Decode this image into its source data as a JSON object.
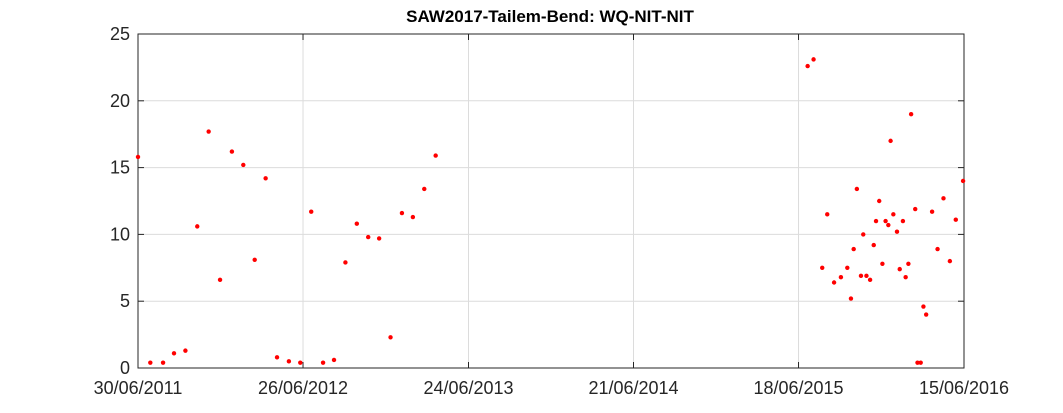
{
  "chart_data": {
    "type": "scatter",
    "title": "SAW2017-Tailem-Bend: WQ-NIT-NIT",
    "xlabel": "",
    "ylabel": "",
    "x_axis_type": "date",
    "xlim": [
      "2011-06-30",
      "2016-06-15"
    ],
    "ylim": [
      0,
      25
    ],
    "yticks": [
      0,
      5,
      10,
      15,
      20,
      25
    ],
    "xticks": [
      "2011-06-30",
      "2012-06-26",
      "2013-06-24",
      "2014-06-21",
      "2015-06-18",
      "2016-06-15"
    ],
    "xtick_labels": [
      "30/06/2011",
      "26/06/2012",
      "24/06/2013",
      "21/06/2014",
      "18/06/2015",
      "15/06/2016"
    ],
    "grid": true,
    "marker_color": "#ff0000",
    "series": [
      {
        "points": [
          [
            "2011-06-30",
            15.8
          ],
          [
            "2011-07-27",
            0.4
          ],
          [
            "2011-08-24",
            0.4
          ],
          [
            "2011-09-17",
            1.1
          ],
          [
            "2011-10-12",
            1.3
          ],
          [
            "2011-11-07",
            10.6
          ],
          [
            "2011-12-02",
            17.7
          ],
          [
            "2011-12-27",
            6.6
          ],
          [
            "2012-01-22",
            16.2
          ],
          [
            "2012-02-16",
            15.2
          ],
          [
            "2012-03-12",
            8.1
          ],
          [
            "2012-04-05",
            14.2
          ],
          [
            "2012-04-30",
            0.8
          ],
          [
            "2012-05-26",
            0.5
          ],
          [
            "2012-06-20",
            0.4
          ],
          [
            "2012-07-14",
            11.7
          ],
          [
            "2012-08-09",
            0.4
          ],
          [
            "2012-09-02",
            0.6
          ],
          [
            "2012-09-27",
            7.9
          ],
          [
            "2012-10-22",
            10.8
          ],
          [
            "2012-11-16",
            9.8
          ],
          [
            "2012-12-10",
            9.7
          ],
          [
            "2013-01-04",
            2.3
          ],
          [
            "2013-01-29",
            11.6
          ],
          [
            "2013-02-22",
            11.3
          ],
          [
            "2013-03-19",
            13.4
          ],
          [
            "2013-04-13",
            15.9
          ],
          [
            "2015-07-08",
            22.6
          ],
          [
            "2015-07-21",
            23.1
          ],
          [
            "2015-08-09",
            7.5
          ],
          [
            "2015-08-20",
            11.5
          ],
          [
            "2015-09-04",
            6.4
          ],
          [
            "2015-09-19",
            6.8
          ],
          [
            "2015-10-03",
            7.5
          ],
          [
            "2015-10-11",
            5.2
          ],
          [
            "2015-10-17",
            8.9
          ],
          [
            "2015-10-24",
            13.4
          ],
          [
            "2015-11-02",
            6.9
          ],
          [
            "2015-11-07",
            10.0
          ],
          [
            "2015-11-14",
            6.9
          ],
          [
            "2015-11-22",
            6.6
          ],
          [
            "2015-11-30",
            9.2
          ],
          [
            "2015-12-05",
            11.0
          ],
          [
            "2015-12-12",
            12.5
          ],
          [
            "2015-12-19",
            7.8
          ],
          [
            "2015-12-26",
            11.0
          ],
          [
            "2016-01-01",
            10.7
          ],
          [
            "2016-01-06",
            17.0
          ],
          [
            "2016-01-12",
            11.5
          ],
          [
            "2016-01-20",
            10.2
          ],
          [
            "2016-01-26",
            7.4
          ],
          [
            "2016-02-02",
            11.0
          ],
          [
            "2016-02-08",
            6.8
          ],
          [
            "2016-02-14",
            7.8
          ],
          [
            "2016-02-20",
            19.0
          ],
          [
            "2016-02-29",
            11.9
          ],
          [
            "2016-03-05",
            0.4
          ],
          [
            "2016-03-12",
            0.4
          ],
          [
            "2016-03-18",
            4.6
          ],
          [
            "2016-03-24",
            4.0
          ],
          [
            "2016-04-06",
            11.7
          ],
          [
            "2016-04-18",
            8.9
          ],
          [
            "2016-05-01",
            12.7
          ],
          [
            "2016-05-15",
            8.0
          ],
          [
            "2016-05-28",
            11.1
          ],
          [
            "2016-06-13",
            14.0
          ]
        ]
      }
    ]
  }
}
